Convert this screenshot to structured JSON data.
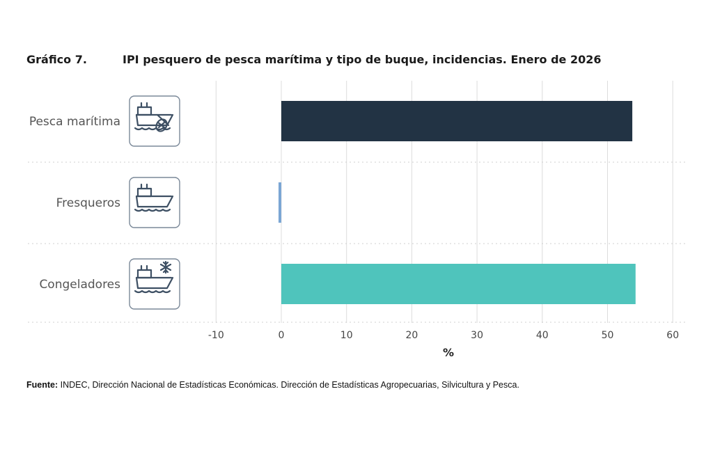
{
  "header": {
    "figure_number": "Gráfico 7.",
    "title": "IPI pesquero de pesca marítima y tipo de buque, incidencias. Enero de 2026"
  },
  "chart_data": {
    "type": "bar",
    "orientation": "horizontal",
    "title": "IPI pesquero de pesca marítima y tipo de buque, incidencias. Enero de 2026",
    "xlabel": "%",
    "ylabel": "",
    "xlim": [
      -10,
      60
    ],
    "xticks": [
      -10,
      0,
      10,
      20,
      30,
      40,
      50,
      60
    ],
    "categories": [
      "Pesca marítima",
      "Fresqueros",
      "Congeladores"
    ],
    "values": [
      53.8,
      -0.4,
      54.3
    ],
    "colors": [
      "#223344",
      "#7ba6d4",
      "#4fc4bc"
    ],
    "icons": [
      "fishing-boat-with-fish-icon",
      "fresh-fishing-boat-icon",
      "freezer-boat-with-snowflake-icon"
    ],
    "grid": {
      "vertical": true,
      "horizontal_dotted_separators": true
    },
    "legend": "none"
  },
  "source": {
    "label": "Fuente:",
    "text": "INDEC, Dirección Nacional de Estadísticas Económicas. Dirección de Estadísticas Agropecuarias, Silvicultura y Pesca."
  }
}
